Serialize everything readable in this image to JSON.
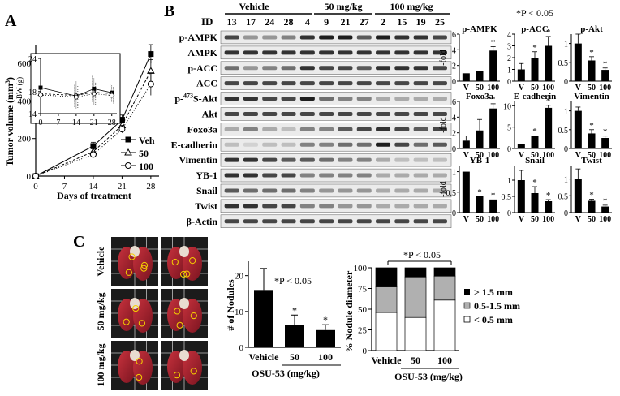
{
  "panels": {
    "A": "A",
    "B": "B",
    "C": "C"
  },
  "panel_a": {
    "y_axis_label": "Tumor volume (mm",
    "y_axis_sup": "3",
    "y_axis_close": ")",
    "x_axis_label": "Days of treatment",
    "y_ticks": [
      "0",
      "200",
      "400",
      "600"
    ],
    "x_ticks": [
      "0",
      "7",
      "14",
      "21",
      "28"
    ],
    "legend": [
      "Veh",
      "50",
      "100"
    ],
    "inset": {
      "y_label": "BW (g)",
      "y_ticks": [
        "14",
        "18",
        "24"
      ],
      "x_ticks": [
        "0",
        "7",
        "14",
        "21",
        "28"
      ]
    }
  },
  "panel_b": {
    "id_label": "ID",
    "groups": [
      "Vehicle",
      "50 mg/kg",
      "100 mg/kg"
    ],
    "ids": [
      "13",
      "17",
      "24",
      "28",
      "4",
      "9",
      "21",
      "27",
      "2",
      "15",
      "19",
      "25"
    ],
    "rows": [
      "p-AMPK",
      "AMPK",
      "p-ACC",
      "ACC",
      "p-473S-Akt",
      "Akt",
      "Foxo3a",
      "E-cadherin",
      "Vimentin",
      "YB-1",
      "Snail",
      "Twist",
      "β-Actin"
    ],
    "row_pakt": {
      "pre": "p-",
      "sup": "473",
      "post": "S-Akt"
    },
    "pvalue": "*P < 0.05",
    "fold_label": "-fold",
    "bar_x_labels": [
      "V",
      "50",
      "100"
    ]
  },
  "panel_c": {
    "photo_labels": [
      "Vehicle",
      "50 mg/kg",
      "100 mg/kg"
    ],
    "nodules_pvalue": "*P < 0.05",
    "nodules_y_label": "# of Nodules",
    "nodules_y_ticks": [
      "0",
      "10",
      "20"
    ],
    "nodules_x_labels": [
      "Vehicle",
      "50",
      "100"
    ],
    "nodules_x_title": "OSU-53 (mg/kg)",
    "diameter_pvalue": "*P < 0.05",
    "diameter_y_label": "% Nodule diameter",
    "diameter_y_ticks": [
      "0",
      "25",
      "50",
      "75",
      "100"
    ],
    "diameter_x_labels": [
      "Vehicle",
      "50",
      "100"
    ],
    "diameter_x_title": "OSU-53 (mg/kg)",
    "diameter_legend": [
      "> 1.5 mm",
      "0.5-1.5 mm",
      "< 0.5 mm"
    ]
  },
  "chart_data": [
    {
      "id": "tumor",
      "type": "line",
      "xlabel": "Days of treatment",
      "ylabel": "Tumor volume (mm3)",
      "x": [
        0,
        14,
        21,
        28
      ],
      "xlim": [
        0,
        30
      ],
      "ylim": [
        0,
        700
      ],
      "series": [
        {
          "name": "Veh",
          "values": [
            0,
            160,
            300,
            650
          ],
          "err": [
            0,
            20,
            25,
            50
          ]
        },
        {
          "name": "50",
          "values": [
            0,
            130,
            270,
            560
          ],
          "err": [
            0,
            15,
            25,
            60
          ]
        },
        {
          "name": "100",
          "values": [
            0,
            115,
            250,
            490
          ],
          "err": [
            0,
            15,
            20,
            60
          ]
        }
      ]
    },
    {
      "id": "bw",
      "type": "line",
      "ylabel": "BW (g)",
      "x": [
        0,
        14,
        21,
        28
      ],
      "xlim": [
        0,
        30
      ],
      "ylim": [
        14,
        24
      ],
      "series": [
        {
          "name": "Veh",
          "values": [
            18.7,
            17.2,
            18.5,
            17.8
          ],
          "err": [
            0,
            2,
            2.5,
            1.5
          ]
        },
        {
          "name": "50",
          "values": [
            17.6,
            17.3,
            17.9,
            17.6
          ],
          "err": [
            0,
            2.5,
            2.5,
            1.5
          ]
        },
        {
          "name": "100",
          "values": [
            17.4,
            17.0,
            17.6,
            17.3
          ],
          "err": [
            0,
            2,
            2,
            1.5
          ]
        }
      ]
    },
    {
      "id": "pampk",
      "type": "bar",
      "title": "p-AMPK",
      "categories": [
        "V",
        "50",
        "100"
      ],
      "values": [
        1,
        1.3,
        3.9
      ],
      "err": [
        0,
        0,
        0.5
      ],
      "sig": [
        false,
        false,
        true
      ],
      "ylim": [
        0,
        6
      ],
      "yticks": [
        0,
        2,
        4,
        6
      ]
    },
    {
      "id": "pacc",
      "type": "bar",
      "title": "p-ACC",
      "categories": [
        "V",
        "50",
        "100"
      ],
      "values": [
        1,
        2,
        3
      ],
      "err": [
        0.5,
        0.5,
        0.8
      ],
      "sig": [
        false,
        true,
        true
      ],
      "ylim": [
        0,
        4
      ],
      "yticks": [
        0,
        1,
        2,
        3,
        4
      ]
    },
    {
      "id": "pakt",
      "type": "bar",
      "title": "p-Akt",
      "categories": [
        "V",
        "50",
        "100"
      ],
      "values": [
        1,
        0.55,
        0.3
      ],
      "err": [
        0.25,
        0.1,
        0.05
      ],
      "sig": [
        false,
        true,
        true
      ],
      "ylim": [
        0,
        1.25
      ],
      "yticks": [
        0,
        0.5,
        1
      ]
    },
    {
      "id": "foxo3a",
      "type": "bar",
      "title": "Foxo3a",
      "categories": [
        "V",
        "50",
        "100"
      ],
      "values": [
        1,
        2.3,
        5.1
      ],
      "err": [
        0.6,
        1.4,
        0.6
      ],
      "sig": [
        false,
        false,
        true
      ],
      "ylim": [
        0,
        6
      ],
      "yticks": [
        0,
        2,
        4,
        6
      ]
    },
    {
      "id": "ecad",
      "type": "bar",
      "title": "E-cadherin",
      "categories": [
        "V",
        "50",
        "100"
      ],
      "values": [
        1,
        3,
        9.5
      ],
      "err": [
        0,
        0,
        0.6
      ],
      "sig": [
        false,
        true,
        true
      ],
      "ylim": [
        0,
        11
      ],
      "yticks": [
        0,
        5,
        10
      ]
    },
    {
      "id": "vim",
      "type": "bar",
      "title": "Vimentin",
      "categories": [
        "V",
        "50",
        "100"
      ],
      "values": [
        1,
        0.4,
        0.28
      ],
      "err": [
        0.1,
        0.1,
        0.05
      ],
      "sig": [
        false,
        true,
        true
      ],
      "ylim": [
        0,
        1.25
      ],
      "yticks": [
        0,
        0.5,
        1
      ]
    },
    {
      "id": "yb1",
      "type": "bar",
      "title": "YB-1",
      "categories": [
        "V",
        "50",
        "100"
      ],
      "values": [
        1,
        0.4,
        0.32
      ],
      "err": [
        0,
        0,
        0
      ],
      "sig": [
        false,
        true,
        true
      ],
      "ylim": [
        0,
        1.15
      ],
      "yticks": [
        0,
        0.5,
        1
      ]
    },
    {
      "id": "snail",
      "type": "bar",
      "title": "Snail",
      "categories": [
        "V",
        "50",
        "100"
      ],
      "values": [
        1,
        0.6,
        0.35
      ],
      "err": [
        0.3,
        0.2,
        0.05
      ],
      "sig": [
        false,
        true,
        true
      ],
      "ylim": [
        0,
        1.45
      ],
      "yticks": [
        0,
        0.5,
        1
      ]
    },
    {
      "id": "twist",
      "type": "bar",
      "title": "Twist",
      "categories": [
        "V",
        "50",
        "100"
      ],
      "values": [
        1,
        0.35,
        0.18
      ],
      "err": [
        0.3,
        0.05,
        0.04
      ],
      "sig": [
        false,
        true,
        true
      ],
      "ylim": [
        0,
        1.4
      ],
      "yticks": [
        0,
        0.5,
        1
      ]
    },
    {
      "id": "nodules",
      "type": "bar",
      "ylabel": "# of Nodules",
      "xlabel": "OSU-53 (mg/kg)",
      "categories": [
        "Vehicle",
        "50",
        "100"
      ],
      "values": [
        16,
        6.3,
        4.8
      ],
      "err": [
        6,
        2.7,
        1.5
      ],
      "sig": [
        false,
        true,
        true
      ],
      "ylim": [
        0,
        24
      ],
      "yticks": [
        0,
        10,
        20
      ]
    },
    {
      "id": "diameter",
      "type": "bar",
      "ylabel": "% Nodule diameter",
      "xlabel": "OSU-53 (mg/kg)",
      "categories": [
        "Vehicle",
        "50",
        "100"
      ],
      "series": [
        {
          "name": "< 0.5 mm",
          "values": [
            46,
            40,
            61
          ]
        },
        {
          "name": "0.5-1.5 mm",
          "values": [
            31,
            49,
            29
          ]
        },
        {
          "name": "> 1.5 mm",
          "values": [
            23,
            11,
            10
          ]
        }
      ],
      "ylim": [
        0,
        100
      ]
    }
  ]
}
